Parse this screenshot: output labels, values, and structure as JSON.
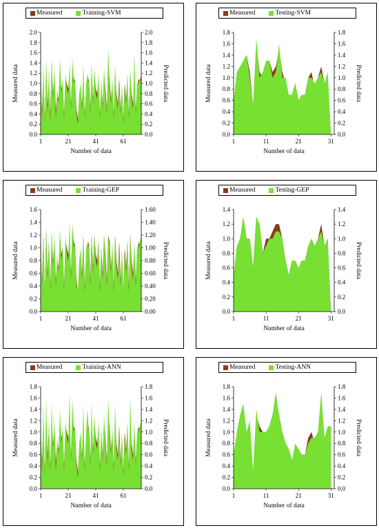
{
  "colors": {
    "measured": "#8B3A1C",
    "predicted": "#77E033"
  },
  "chart_data": [
    {
      "type": "area",
      "legend": [
        "Measured",
        "Training-SVM"
      ],
      "xlabel": "Number of data",
      "ylabel_left": "Measured data",
      "ylabel_right": "Predicted data",
      "xlim": [
        1,
        74
      ],
      "xticks": [
        "1",
        "21",
        "41",
        "61"
      ],
      "ylim": [
        0,
        2.0
      ],
      "yticks_left": [
        "0.0",
        "0.2",
        "0.4",
        "0.6",
        "0.8",
        "1.0",
        "1.2",
        "1.4",
        "1.6",
        "1.8",
        "2.0"
      ],
      "yticks_right": [
        "0.0",
        "0.2",
        "0.4",
        "0.6",
        "0.8",
        "1.0",
        "1.2",
        "1.4",
        "1.6",
        "1.8",
        "2.0"
      ],
      "series": [
        {
          "name": "Measured",
          "values": [
            1.0,
            0.5,
            1.2,
            0.3,
            1.3,
            0.6,
            1.1,
            0.4,
            1.4,
            0.8,
            1.2,
            0.5,
            0.8,
            0.7,
            1.3,
            0.9,
            1.0,
            0.4,
            1.1,
            1.0,
            0.9,
            1.2,
            0.6,
            1.3,
            1.1,
            1.0,
            0.5,
            0.3,
            0.7,
            0.9,
            0.6,
            1.2,
            0.4,
            0.9,
            1.0,
            1.1,
            0.5,
            1.3,
            0.7,
            1.2,
            0.9,
            0.8,
            1.1,
            0.4,
            1.0,
            0.6,
            1.2,
            0.9,
            0.5,
            1.3,
            1.1,
            0.7,
            1.0,
            0.4,
            1.2,
            0.8,
            0.6,
            1.1,
            0.5,
            0.9,
            0.3,
            1.0,
            0.7,
            1.1,
            0.4,
            1.2,
            0.8,
            0.6,
            1.0,
            0.5,
            0.9,
            1.1,
            1.0,
            1.2
          ]
        },
        {
          "name": "Training-SVM",
          "values": [
            1.6,
            0.3,
            1.4,
            0.2,
            1.5,
            0.4,
            1.3,
            0.2,
            1.5,
            0.7,
            1.3,
            0.3,
            0.9,
            0.6,
            1.5,
            0.8,
            1.1,
            0.3,
            1.2,
            0.9,
            0.8,
            1.4,
            0.5,
            1.5,
            1.0,
            1.1,
            0.4,
            0.2,
            0.8,
            1.0,
            0.5,
            1.4,
            0.3,
            1.0,
            1.2,
            1.0,
            0.4,
            1.4,
            0.6,
            1.3,
            0.8,
            0.7,
            1.2,
            0.3,
            1.1,
            0.5,
            1.3,
            0.8,
            0.4,
            1.7,
            1.0,
            0.6,
            1.1,
            0.3,
            1.4,
            0.7,
            0.5,
            1.0,
            0.4,
            1.0,
            0.2,
            0.9,
            0.6,
            1.2,
            0.3,
            1.3,
            0.7,
            0.5,
            1.6,
            0.4,
            1.0,
            1.0,
            1.1,
            1.0
          ]
        }
      ]
    },
    {
      "type": "area",
      "legend": [
        "Measured",
        "Testing-SVM"
      ],
      "xlabel": "Number of data",
      "ylabel_left": "Measured data",
      "ylabel_right": "Predicted data",
      "xlim": [
        1,
        32
      ],
      "xticks": [
        "1",
        "11",
        "21",
        "31"
      ],
      "ylim": [
        0,
        1.8
      ],
      "yticks_left": [
        "0.0",
        "0.2",
        "0.4",
        "0.6",
        "0.8",
        "1.0",
        "1.2",
        "1.4",
        "1.6",
        "1.8"
      ],
      "yticks_right": [
        "0.0",
        "0.2",
        "0.4",
        "0.6",
        "0.8",
        "1.0",
        "1.2",
        "1.4",
        "1.6",
        "1.8"
      ],
      "series": [
        {
          "name": "Measured",
          "values": [
            0.5,
            1.0,
            1.1,
            1.3,
            1.4,
            1.1,
            0.5,
            1.6,
            1.1,
            1.0,
            1.3,
            1.3,
            1.1,
            1.2,
            1.5,
            1.1,
            0.9,
            0.7,
            0.7,
            0.9,
            0.6,
            0.7,
            0.7,
            1.0,
            1.1,
            0.8,
            1.0,
            1.2,
            0.9,
            1.0,
            0.0
          ]
        },
        {
          "name": "Testing-SVM",
          "values": [
            0.6,
            1.1,
            1.2,
            1.3,
            1.4,
            1.0,
            0.5,
            1.7,
            1.0,
            1.1,
            1.3,
            1.3,
            1.0,
            1.1,
            1.6,
            1.0,
            1.0,
            0.7,
            0.7,
            0.9,
            0.6,
            0.7,
            0.7,
            1.0,
            1.0,
            0.9,
            1.0,
            1.1,
            0.9,
            1.1,
            0.0
          ]
        }
      ]
    },
    {
      "type": "area",
      "legend": [
        "Measured",
        "Training-GEP"
      ],
      "xlabel": "Number of data",
      "ylabel_left": "Measured data",
      "ylabel_right": "Predicted data",
      "xlim": [
        1,
        74
      ],
      "xticks": [
        "1",
        "21",
        "41",
        "61"
      ],
      "ylim": [
        0,
        1.6
      ],
      "yticks_left": [
        "0.0",
        "0.2",
        "0.4",
        "0.6",
        "0.8",
        "1.0",
        "1.2",
        "1.4",
        "1.6"
      ],
      "yticks_right": [
        "0.00",
        "0.20",
        "0.40",
        "0.60",
        "0.80",
        "1.00",
        "1.20",
        "1.40",
        "1.60"
      ],
      "series": [
        {
          "name": "Measured",
          "values": [
            1.0,
            0.5,
            1.2,
            0.3,
            1.3,
            0.6,
            1.1,
            0.4,
            1.2,
            0.8,
            1.1,
            0.5,
            0.8,
            0.7,
            1.2,
            0.9,
            1.0,
            0.4,
            1.1,
            1.0,
            0.9,
            1.2,
            0.6,
            1.3,
            1.1,
            1.0,
            0.5,
            0.3,
            0.7,
            0.9,
            0.6,
            1.2,
            0.4,
            0.9,
            1.0,
            1.1,
            0.5,
            1.2,
            0.7,
            1.2,
            0.9,
            0.8,
            1.1,
            0.4,
            1.0,
            0.6,
            1.2,
            0.9,
            0.5,
            1.2,
            1.1,
            0.7,
            1.0,
            0.4,
            1.2,
            0.8,
            0.6,
            1.1,
            0.5,
            0.9,
            0.3,
            1.0,
            0.7,
            1.1,
            0.4,
            1.2,
            0.8,
            0.6,
            1.0,
            0.5,
            0.9,
            1.1,
            1.0,
            1.2
          ]
        },
        {
          "name": "Training-GEP",
          "values": [
            1.3,
            0.4,
            1.2,
            0.3,
            1.3,
            0.5,
            1.1,
            0.3,
            1.3,
            0.7,
            1.2,
            0.4,
            0.9,
            0.6,
            1.3,
            0.8,
            1.0,
            0.3,
            1.2,
            0.9,
            0.8,
            1.4,
            0.5,
            1.4,
            1.0,
            1.1,
            0.4,
            0.3,
            0.8,
            1.0,
            0.5,
            1.2,
            0.3,
            1.0,
            1.1,
            1.0,
            0.4,
            1.2,
            0.6,
            1.2,
            0.8,
            0.7,
            1.1,
            0.3,
            1.0,
            0.5,
            1.2,
            0.8,
            0.4,
            1.2,
            1.0,
            0.6,
            1.1,
            0.3,
            1.2,
            0.7,
            0.5,
            1.0,
            0.4,
            1.0,
            0.3,
            0.9,
            0.6,
            1.1,
            0.3,
            1.2,
            0.7,
            0.5,
            1.1,
            0.4,
            1.0,
            1.0,
            1.1,
            1.2
          ]
        }
      ]
    },
    {
      "type": "area",
      "legend": [
        "Measured",
        "Testing-GEP"
      ],
      "xlabel": "Number of data",
      "ylabel_left": "Measured data",
      "ylabel_right": "Predicted data",
      "xlim": [
        1,
        32
      ],
      "xticks": [
        "1",
        "11",
        "21",
        "31"
      ],
      "ylim": [
        0,
        1.4
      ],
      "yticks_left": [
        "0.0",
        "0.2",
        "0.4",
        "0.6",
        "0.8",
        "1.0",
        "1.2",
        "1.4"
      ],
      "yticks_right": [
        "0.0",
        "0.2",
        "0.4",
        "0.6",
        "0.8",
        "1.0",
        "1.2",
        "1.4"
      ],
      "series": [
        {
          "name": "Measured",
          "values": [
            0.5,
            0.8,
            1.0,
            1.3,
            1.0,
            1.0,
            0.6,
            1.3,
            1.2,
            0.8,
            1.0,
            1.0,
            1.1,
            1.2,
            1.2,
            1.0,
            0.7,
            0.5,
            0.7,
            0.7,
            0.6,
            0.7,
            0.7,
            0.9,
            1.0,
            0.9,
            1.0,
            1.2,
            0.9,
            1.0,
            0.0
          ]
        },
        {
          "name": "Testing-GEP",
          "values": [
            0.5,
            0.9,
            1.0,
            1.3,
            1.0,
            1.0,
            0.6,
            1.3,
            1.2,
            0.8,
            0.9,
            1.0,
            1.0,
            1.1,
            1.1,
            1.0,
            0.7,
            0.5,
            0.7,
            0.7,
            0.6,
            0.7,
            0.7,
            0.9,
            1.0,
            0.9,
            1.0,
            1.1,
            0.9,
            1.0,
            0.0
          ]
        }
      ]
    },
    {
      "type": "area",
      "legend": [
        "Measured",
        "Training-ANN"
      ],
      "xlabel": "Number of data",
      "ylabel_left": "Measured data",
      "ylabel_right": "Predicted data",
      "xlim": [
        1,
        74
      ],
      "xticks": [
        "1",
        "21",
        "41",
        "61"
      ],
      "ylim": [
        0,
        1.8
      ],
      "yticks_left": [
        "0.0",
        "0.2",
        "0.4",
        "0.6",
        "0.8",
        "1.0",
        "1.2",
        "1.4",
        "1.6",
        "1.8"
      ],
      "yticks_right": [
        "0.0",
        "0.2",
        "0.4",
        "0.6",
        "0.8",
        "1.0",
        "1.2",
        "1.4",
        "1.6",
        "1.8"
      ],
      "series": [
        {
          "name": "Measured",
          "values": [
            1.0,
            0.5,
            1.2,
            0.3,
            1.3,
            0.6,
            1.1,
            0.4,
            1.2,
            0.8,
            1.1,
            0.5,
            0.8,
            0.7,
            1.2,
            0.9,
            1.0,
            0.4,
            1.1,
            1.0,
            0.9,
            1.2,
            0.6,
            1.3,
            1.1,
            1.0,
            0.5,
            0.3,
            0.7,
            0.9,
            0.6,
            1.2,
            0.4,
            0.9,
            1.0,
            1.1,
            0.5,
            1.2,
            0.7,
            1.2,
            0.9,
            0.8,
            1.1,
            0.4,
            1.0,
            0.6,
            1.2,
            0.9,
            0.5,
            1.2,
            1.1,
            0.7,
            1.0,
            0.4,
            1.2,
            0.8,
            0.6,
            1.1,
            0.5,
            0.9,
            0.3,
            1.0,
            0.7,
            1.1,
            0.4,
            1.2,
            0.8,
            0.6,
            1.0,
            0.5,
            0.9,
            1.1,
            1.0,
            1.2
          ]
        },
        {
          "name": "Training-ANN",
          "values": [
            1.3,
            0.3,
            1.5,
            0.2,
            1.6,
            0.4,
            1.2,
            0.3,
            1.5,
            0.7,
            1.2,
            0.3,
            0.9,
            0.6,
            1.4,
            0.8,
            1.1,
            0.3,
            1.2,
            0.9,
            0.8,
            1.7,
            0.5,
            1.6,
            1.0,
            1.1,
            0.4,
            0.2,
            0.8,
            1.0,
            0.5,
            1.5,
            0.3,
            1.0,
            1.4,
            1.0,
            0.4,
            1.5,
            0.6,
            1.3,
            0.8,
            0.7,
            1.2,
            0.3,
            1.1,
            0.5,
            1.3,
            0.8,
            0.4,
            1.6,
            1.0,
            0.6,
            1.1,
            0.3,
            1.5,
            0.7,
            0.5,
            1.0,
            0.4,
            1.0,
            0.2,
            0.9,
            0.6,
            1.2,
            0.3,
            1.6,
            0.7,
            0.5,
            1.2,
            0.4,
            1.0,
            1.0,
            1.1,
            1.2
          ]
        }
      ]
    },
    {
      "type": "area",
      "legend": [
        "Measured",
        "Testing-ANN"
      ],
      "xlabel": "Number of data",
      "ylabel_left": "Measured data",
      "ylabel_right": "Predicted data",
      "xlim": [
        1,
        32
      ],
      "xticks": [
        "1",
        "11",
        "21",
        "31"
      ],
      "ylim": [
        0,
        1.8
      ],
      "yticks_left": [
        "0.0",
        "0.2",
        "0.4",
        "0.6",
        "0.8",
        "1.0",
        "1.2",
        "1.4",
        "1.6",
        "1.8"
      ],
      "yticks_right": [
        "0.0",
        "0.2",
        "0.4",
        "0.6",
        "0.8",
        "1.0",
        "1.2",
        "1.4",
        "1.6",
        "1.8"
      ],
      "series": [
        {
          "name": "Measured",
          "values": [
            0.6,
            0.9,
            1.2,
            1.4,
            1.0,
            1.1,
            0.3,
            1.3,
            1.1,
            1.0,
            1.0,
            1.1,
            1.3,
            1.6,
            1.3,
            1.0,
            0.8,
            0.7,
            0.5,
            0.7,
            0.7,
            0.6,
            0.6,
            0.9,
            1.0,
            0.8,
            1.0,
            1.2,
            0.9,
            1.0,
            1.1
          ]
        },
        {
          "name": "Testing-ANN",
          "values": [
            0.6,
            1.0,
            1.3,
            1.5,
            1.0,
            1.2,
            0.3,
            1.4,
            1.0,
            1.0,
            1.0,
            1.1,
            1.3,
            1.7,
            1.3,
            1.0,
            0.8,
            0.7,
            0.5,
            0.8,
            0.7,
            0.6,
            0.6,
            0.8,
            0.9,
            0.9,
            1.0,
            1.7,
            0.9,
            1.1,
            1.1
          ]
        }
      ]
    }
  ]
}
